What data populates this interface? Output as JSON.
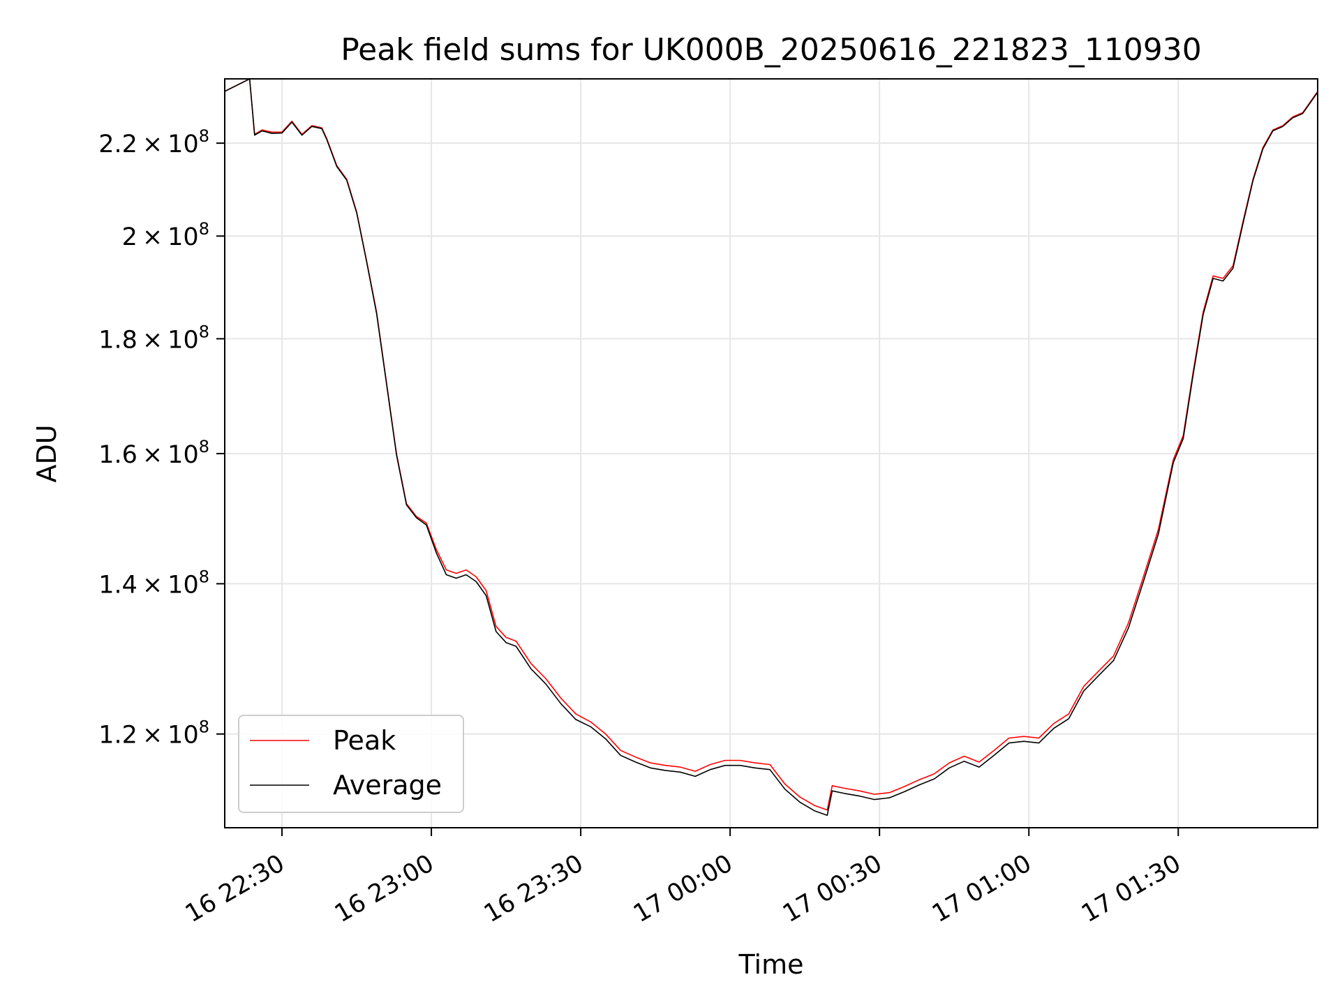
{
  "chart_data": {
    "type": "line",
    "title": "Peak field sums for UK000B_20250616_221823_110930",
    "xlabel": "Time",
    "ylabel": "ADU",
    "y_scale": "log",
    "grid": true,
    "legend_position": "lower-left",
    "xlim": [
      "2025-06-16 22:18:30",
      "2025-06-17 01:58:00"
    ],
    "ylim": [
      109000000,
      235000000
    ],
    "x_ticks": [
      {
        "time": "2025-06-16 22:30",
        "label": "16 22:30"
      },
      {
        "time": "2025-06-16 23:00",
        "label": "16 23:00"
      },
      {
        "time": "2025-06-16 23:30",
        "label": "16 23:30"
      },
      {
        "time": "2025-06-17 00:00",
        "label": "17 00:00"
      },
      {
        "time": "2025-06-17 00:30",
        "label": "17 00:30"
      },
      {
        "time": "2025-06-17 01:00",
        "label": "17 01:00"
      },
      {
        "time": "2025-06-17 01:30",
        "label": "17 01:30"
      }
    ],
    "y_ticks": [
      {
        "value": 120000000,
        "label": "1.2",
        "exponent": "8"
      },
      {
        "value": 140000000,
        "label": "1.4",
        "exponent": "8"
      },
      {
        "value": 160000000,
        "label": "1.6",
        "exponent": "8"
      },
      {
        "value": 180000000,
        "label": "1.8",
        "exponent": "8"
      },
      {
        "value": 200000000,
        "label": "2",
        "exponent": "8"
      },
      {
        "value": 220000000,
        "label": "2.2",
        "exponent": "8"
      }
    ],
    "series": [
      {
        "name": "Peak",
        "color": "#ff0000",
        "x": [
          "2025-06-16 22:18:30",
          "2025-06-16 22:23:30",
          "2025-06-16 22:24:30",
          "2025-06-16 22:26:00",
          "2025-06-16 22:28:00",
          "2025-06-16 22:30:00",
          "2025-06-16 22:32:00",
          "2025-06-16 22:34:00",
          "2025-06-16 22:36:00",
          "2025-06-16 22:38:00",
          "2025-06-16 22:39:00",
          "2025-06-16 22:41:00",
          "2025-06-16 22:43:00",
          "2025-06-16 22:45:00",
          "2025-06-16 22:47:00",
          "2025-06-16 22:49:00",
          "2025-06-16 22:51:00",
          "2025-06-16 22:53:00",
          "2025-06-16 22:55:00",
          "2025-06-16 22:57:00",
          "2025-06-16 22:59:00",
          "2025-06-16 23:01:00",
          "2025-06-16 23:03:00",
          "2025-06-16 23:05:00",
          "2025-06-16 23:07:00",
          "2025-06-16 23:09:00",
          "2025-06-16 23:11:00",
          "2025-06-16 23:13:00",
          "2025-06-16 23:15:00",
          "2025-06-16 23:17:00",
          "2025-06-16 23:20:00",
          "2025-06-16 23:23:00",
          "2025-06-16 23:26:00",
          "2025-06-16 23:29:00",
          "2025-06-16 23:32:00",
          "2025-06-16 23:35:00",
          "2025-06-16 23:38:00",
          "2025-06-16 23:41:00",
          "2025-06-16 23:44:00",
          "2025-06-16 23:47:00",
          "2025-06-16 23:50:00",
          "2025-06-16 23:53:00",
          "2025-06-16 23:56:00",
          "2025-06-16 23:59:00",
          "2025-06-17 00:02:00",
          "2025-06-17 00:05:00",
          "2025-06-17 00:08:00",
          "2025-06-17 00:11:00",
          "2025-06-17 00:14:00",
          "2025-06-17 00:17:00",
          "2025-06-17 00:19:30",
          "2025-06-17 00:20:30",
          "2025-06-17 00:23:00",
          "2025-06-17 00:26:00",
          "2025-06-17 00:29:00",
          "2025-06-17 00:32:00",
          "2025-06-17 00:35:00",
          "2025-06-17 00:38:00",
          "2025-06-17 00:41:00",
          "2025-06-17 00:44:00",
          "2025-06-17 00:47:00",
          "2025-06-17 00:50:00",
          "2025-06-17 00:53:00",
          "2025-06-17 00:56:00",
          "2025-06-17 00:59:00",
          "2025-06-17 01:02:00",
          "2025-06-17 01:05:00",
          "2025-06-17 01:08:00",
          "2025-06-17 01:11:00",
          "2025-06-17 01:14:00",
          "2025-06-17 01:17:00",
          "2025-06-17 01:20:00",
          "2025-06-17 01:23:00",
          "2025-06-17 01:26:00",
          "2025-06-17 01:29:00",
          "2025-06-17 01:31:00",
          "2025-06-17 01:33:00",
          "2025-06-17 01:35:00",
          "2025-06-17 01:37:00",
          "2025-06-17 01:39:00",
          "2025-06-17 01:41:00",
          "2025-06-17 01:43:00",
          "2025-06-17 01:45:00",
          "2025-06-17 01:47:00",
          "2025-06-17 01:49:00",
          "2025-06-17 01:51:00",
          "2025-06-17 01:53:00",
          "2025-06-17 01:55:00",
          "2025-06-17 01:58:00"
        ],
        "y": [
          232000000,
          235000000,
          222000000,
          223000000,
          222500000,
          222500000,
          225000000,
          222000000,
          224000000,
          223500000,
          221000000,
          215000000,
          212000000,
          205000000,
          195000000,
          185000000,
          172000000,
          160000000,
          152000000,
          150000000,
          149000000,
          145000000,
          142000000,
          141500000,
          142000000,
          141000000,
          139000000,
          134000000,
          132500000,
          132000000,
          129000000,
          127000000,
          124500000,
          122500000,
          121500000,
          120000000,
          118000000,
          117200000,
          116500000,
          116200000,
          116000000,
          115500000,
          116300000,
          116800000,
          116800000,
          116500000,
          116300000,
          114000000,
          112500000,
          111500000,
          111000000,
          113800000,
          113500000,
          113200000,
          112800000,
          113000000,
          113700000,
          114500000,
          115200000,
          116500000,
          117300000,
          116600000,
          118000000,
          119500000,
          119700000,
          119500000,
          121300000,
          122500000,
          126000000,
          128000000,
          130000000,
          134500000,
          141000000,
          148000000,
          159000000,
          163000000,
          174000000,
          185000000,
          192000000,
          191500000,
          194000000,
          203000000,
          212000000,
          219000000,
          223000000,
          224000000,
          226000000,
          227000000,
          232000000
        ]
      },
      {
        "name": "Average",
        "color": "#000000",
        "x": [
          "2025-06-16 22:18:30",
          "2025-06-16 22:23:30",
          "2025-06-16 22:24:30",
          "2025-06-16 22:26:00",
          "2025-06-16 22:28:00",
          "2025-06-16 22:30:00",
          "2025-06-16 22:32:00",
          "2025-06-16 22:34:00",
          "2025-06-16 22:36:00",
          "2025-06-16 22:38:00",
          "2025-06-16 22:39:00",
          "2025-06-16 22:41:00",
          "2025-06-16 22:43:00",
          "2025-06-16 22:45:00",
          "2025-06-16 22:47:00",
          "2025-06-16 22:49:00",
          "2025-06-16 22:51:00",
          "2025-06-16 22:53:00",
          "2025-06-16 22:55:00",
          "2025-06-16 22:57:00",
          "2025-06-16 22:59:00",
          "2025-06-16 23:01:00",
          "2025-06-16 23:03:00",
          "2025-06-16 23:05:00",
          "2025-06-16 23:07:00",
          "2025-06-16 23:09:00",
          "2025-06-16 23:11:00",
          "2025-06-16 23:13:00",
          "2025-06-16 23:15:00",
          "2025-06-16 23:17:00",
          "2025-06-16 23:20:00",
          "2025-06-16 23:23:00",
          "2025-06-16 23:26:00",
          "2025-06-16 23:29:00",
          "2025-06-16 23:32:00",
          "2025-06-16 23:35:00",
          "2025-06-16 23:38:00",
          "2025-06-16 23:41:00",
          "2025-06-16 23:44:00",
          "2025-06-16 23:47:00",
          "2025-06-16 23:50:00",
          "2025-06-16 23:53:00",
          "2025-06-16 23:56:00",
          "2025-06-16 23:59:00",
          "2025-06-17 00:02:00",
          "2025-06-17 00:05:00",
          "2025-06-17 00:08:00",
          "2025-06-17 00:11:00",
          "2025-06-17 00:14:00",
          "2025-06-17 00:17:00",
          "2025-06-17 00:19:30",
          "2025-06-17 00:20:30",
          "2025-06-17 00:23:00",
          "2025-06-17 00:26:00",
          "2025-06-17 00:29:00",
          "2025-06-17 00:32:00",
          "2025-06-17 00:35:00",
          "2025-06-17 00:38:00",
          "2025-06-17 00:41:00",
          "2025-06-17 00:44:00",
          "2025-06-17 00:47:00",
          "2025-06-17 00:50:00",
          "2025-06-17 00:53:00",
          "2025-06-17 00:56:00",
          "2025-06-17 00:59:00",
          "2025-06-17 01:02:00",
          "2025-06-17 01:05:00",
          "2025-06-17 01:08:00",
          "2025-06-17 01:11:00",
          "2025-06-17 01:14:00",
          "2025-06-17 01:17:00",
          "2025-06-17 01:20:00",
          "2025-06-17 01:23:00",
          "2025-06-17 01:26:00",
          "2025-06-17 01:29:00",
          "2025-06-17 01:31:00",
          "2025-06-17 01:33:00",
          "2025-06-17 01:35:00",
          "2025-06-17 01:37:00",
          "2025-06-17 01:39:00",
          "2025-06-17 01:41:00",
          "2025-06-17 01:43:00",
          "2025-06-17 01:45:00",
          "2025-06-17 01:47:00",
          "2025-06-17 01:49:00",
          "2025-06-17 01:51:00",
          "2025-06-17 01:53:00",
          "2025-06-17 01:55:00",
          "2025-06-17 01:58:00"
        ],
        "y": [
          232000000,
          235000000,
          221800000,
          222800000,
          222200000,
          222300000,
          224800000,
          221800000,
          223800000,
          223300000,
          220800000,
          214800000,
          211800000,
          204800000,
          194800000,
          184700000,
          171800000,
          159800000,
          151800000,
          149800000,
          148700000,
          144500000,
          141300000,
          140800000,
          141300000,
          140300000,
          138300000,
          133300000,
          131800000,
          131300000,
          128300000,
          126300000,
          123800000,
          121800000,
          120900000,
          119400000,
          117400000,
          116600000,
          115900000,
          115600000,
          115400000,
          114900000,
          115700000,
          116200000,
          116200000,
          115900000,
          115700000,
          113400000,
          111900000,
          110900000,
          110400000,
          113200000,
          112900000,
          112600000,
          112200000,
          112400000,
          113100000,
          113900000,
          114600000,
          115900000,
          116700000,
          116000000,
          117400000,
          118900000,
          119100000,
          118900000,
          120700000,
          121900000,
          125400000,
          127400000,
          129400000,
          133800000,
          140300000,
          147300000,
          158500000,
          162500000,
          173500000,
          184500000,
          191500000,
          191000000,
          193500000,
          202600000,
          211700000,
          218700000,
          222800000,
          223800000,
          225800000,
          226800000,
          231800000
        ]
      }
    ]
  }
}
